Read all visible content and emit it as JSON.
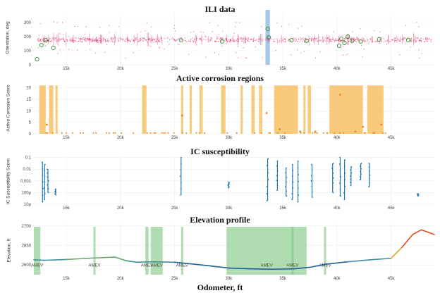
{
  "xaxis": {
    "label": "Odometer, ft",
    "ticks": [
      15000,
      20000,
      25000,
      30000,
      35000,
      40000,
      45000
    ],
    "tick_labels": [
      "15k",
      "20k",
      "25k",
      "30k",
      "35k",
      "40k",
      "45k"
    ],
    "range": [
      12000,
      49000
    ]
  },
  "colors": {
    "red": "#e0245e",
    "blue": "#1f77b4",
    "orange": "#f5a623",
    "green": "#7bc47f",
    "green_dark": "#2e8b2e",
    "highlight_blue": "#5b9bd5"
  },
  "chart_data": [
    {
      "type": "scatter",
      "title": "ILI data",
      "ylabel": "Orientation, deg",
      "ylim": [
        0,
        360
      ],
      "yticks": [
        0,
        100,
        200,
        300
      ],
      "highlight_span": [
        33400,
        33800
      ],
      "dense_band_center": 180,
      "green_markers": [
        {
          "x": 12300,
          "y": 40
        },
        {
          "x": 12700,
          "y": 140
        },
        {
          "x": 13100,
          "y": 175
        },
        {
          "x": 13800,
          "y": 120
        },
        {
          "x": 25600,
          "y": 175
        },
        {
          "x": 29400,
          "y": 165
        },
        {
          "x": 33600,
          "y": 255
        },
        {
          "x": 33700,
          "y": 195
        },
        {
          "x": 35800,
          "y": 175
        },
        {
          "x": 37200,
          "y": 170
        },
        {
          "x": 40200,
          "y": 135
        },
        {
          "x": 40400,
          "y": 185
        },
        {
          "x": 40700,
          "y": 155
        },
        {
          "x": 41000,
          "y": 200
        },
        {
          "x": 41400,
          "y": 170
        },
        {
          "x": 42200,
          "y": 165
        },
        {
          "x": 43900,
          "y": 180
        },
        {
          "x": 46600,
          "y": 175
        }
      ]
    },
    {
      "type": "bar",
      "title": "Active corrosion regions",
      "ylabel": "Active Corrosion Score",
      "ylim": [
        0,
        22
      ],
      "yticks": [
        0,
        5,
        10,
        15,
        20
      ],
      "regions": [
        [
          12500,
          13100
        ],
        [
          13400,
          13800
        ],
        [
          14000,
          14200
        ],
        [
          22000,
          22400
        ],
        [
          25600,
          25800
        ],
        [
          26400,
          26600
        ],
        [
          27300,
          27600
        ],
        [
          29300,
          29700
        ],
        [
          31100,
          31300
        ],
        [
          32100,
          32400
        ],
        [
          32800,
          33100
        ],
        [
          34200,
          36400
        ],
        [
          36900,
          37100
        ],
        [
          37300,
          37600
        ],
        [
          39300,
          42400
        ],
        [
          42800,
          44300
        ]
      ],
      "region_top": 21,
      "points": [
        {
          "x": 13200,
          "y": 4
        },
        {
          "x": 25700,
          "y": 8
        },
        {
          "x": 33500,
          "y": 9
        },
        {
          "x": 36600,
          "y": 1
        },
        {
          "x": 34700,
          "y": 2
        },
        {
          "x": 38000,
          "y": 1
        },
        {
          "x": 40300,
          "y": 17
        },
        {
          "x": 42400,
          "y": 3
        },
        {
          "x": 41700,
          "y": 1
        },
        {
          "x": 44100,
          "y": 4
        }
      ]
    },
    {
      "type": "scatter",
      "title": "IC susceptibility",
      "ylabel": "IC Susceptibility Score",
      "ytick_labels": [
        "0.1",
        "0.01",
        "0.001",
        "100µ",
        "10µ"
      ],
      "yticks_log": [
        -1,
        -2,
        -3,
        -4,
        -5
      ],
      "ylim_log": [
        -5,
        -0.9
      ],
      "vlines": [
        {
          "x": 12800,
          "y0": -4.8,
          "y1": -1.4
        },
        {
          "x": 13000,
          "y0": -4.6,
          "y1": -1.6
        },
        {
          "x": 13300,
          "y0": -4.0,
          "y1": -2.0
        },
        {
          "x": 14000,
          "y0": -4.2,
          "y1": -3.7
        },
        {
          "x": 25600,
          "y0": -4.2,
          "y1": -1.0
        },
        {
          "x": 30000,
          "y0": -3.6,
          "y1": -3.1
        },
        {
          "x": 33600,
          "y0": -4.7,
          "y1": -1.1
        },
        {
          "x": 34500,
          "y0": -3.8,
          "y1": -1.3
        },
        {
          "x": 35300,
          "y0": -4.3,
          "y1": -1.9
        },
        {
          "x": 35900,
          "y0": -4.6,
          "y1": -1.6
        },
        {
          "x": 36400,
          "y0": -4.8,
          "y1": -1.3
        },
        {
          "x": 37700,
          "y0": -4.4,
          "y1": -1.6
        },
        {
          "x": 39600,
          "y0": -4.0,
          "y1": -1.5
        },
        {
          "x": 40300,
          "y0": -4.3,
          "y1": -1.0
        },
        {
          "x": 40700,
          "y0": -4.6,
          "y1": -1.2
        },
        {
          "x": 41300,
          "y0": -3.4,
          "y1": -1.8
        },
        {
          "x": 42200,
          "y0": -2.9,
          "y1": -1.5
        },
        {
          "x": 43000,
          "y0": -3.5,
          "y1": -1.5
        },
        {
          "x": 47500,
          "y0": -4.3,
          "y1": -4.1
        }
      ]
    },
    {
      "type": "line",
      "title": "Elevation profile",
      "ylabel": "Elevation, ft",
      "ylim": [
        2575,
        2705
      ],
      "yticks": [
        2600,
        2650,
        2700
      ],
      "ytick_labels": [
        "2600",
        "2650",
        "2700"
      ],
      "x": [
        12000,
        13000,
        15000,
        17000,
        18500,
        19500,
        20500,
        21500,
        23000,
        25000,
        27500,
        30000,
        32000,
        34000,
        36000,
        37500,
        39000,
        41000,
        43000,
        45000,
        46000,
        47000,
        47800,
        49000
      ],
      "y": [
        2613,
        2612,
        2614,
        2617,
        2619,
        2620,
        2611,
        2607,
        2608,
        2607,
        2600,
        2592,
        2590,
        2589,
        2590,
        2594,
        2602,
        2608,
        2613,
        2617,
        2645,
        2678,
        2690,
        2678
      ],
      "spans": [
        [
          12000,
          12600
        ],
        [
          17500,
          17700
        ],
        [
          22300,
          22600
        ],
        [
          22800,
          23900
        ],
        [
          25600,
          25800
        ],
        [
          29800,
          37200
        ],
        [
          35800,
          36000
        ],
        [
          38800,
          39000
        ]
      ],
      "span_labels": [
        "AMEV",
        "AMEV",
        "AMEV",
        "AMEV",
        "AMEV",
        "AMEV",
        "AMEV",
        "AMEV"
      ]
    }
  ]
}
